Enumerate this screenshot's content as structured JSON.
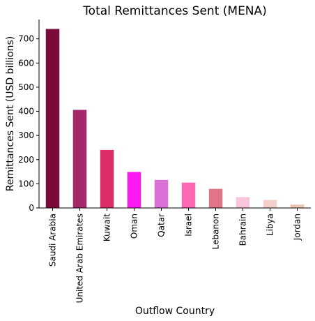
{
  "chart_data": {
    "type": "bar",
    "title": "Total Remittances Sent (MENA)",
    "xlabel": "Outflow Country",
    "ylabel": "Remittances Sent (USD billions)",
    "categories": [
      "Saudi Arabia",
      "United Arab Emirates",
      "Kuwait",
      "Oman",
      "Qatar",
      "Israel",
      "Lebanon",
      "Bahrain",
      "Libya",
      "Jordan"
    ],
    "values": [
      741,
      406,
      240,
      149,
      116,
      105,
      79,
      45,
      33,
      14
    ],
    "colors": [
      "#7a0a3a",
      "#a3296a",
      "#dc2d6b",
      "#ff19f0",
      "#da70d6",
      "#ff69b4",
      "#e07585",
      "#f7c6dc",
      "#f4cec8",
      "#f0c6b4"
    ],
    "ylim": [
      0,
      780
    ],
    "yticks": [
      0,
      100,
      200,
      300,
      400,
      500,
      600,
      700
    ],
    "grid": false,
    "legend": "none"
  }
}
